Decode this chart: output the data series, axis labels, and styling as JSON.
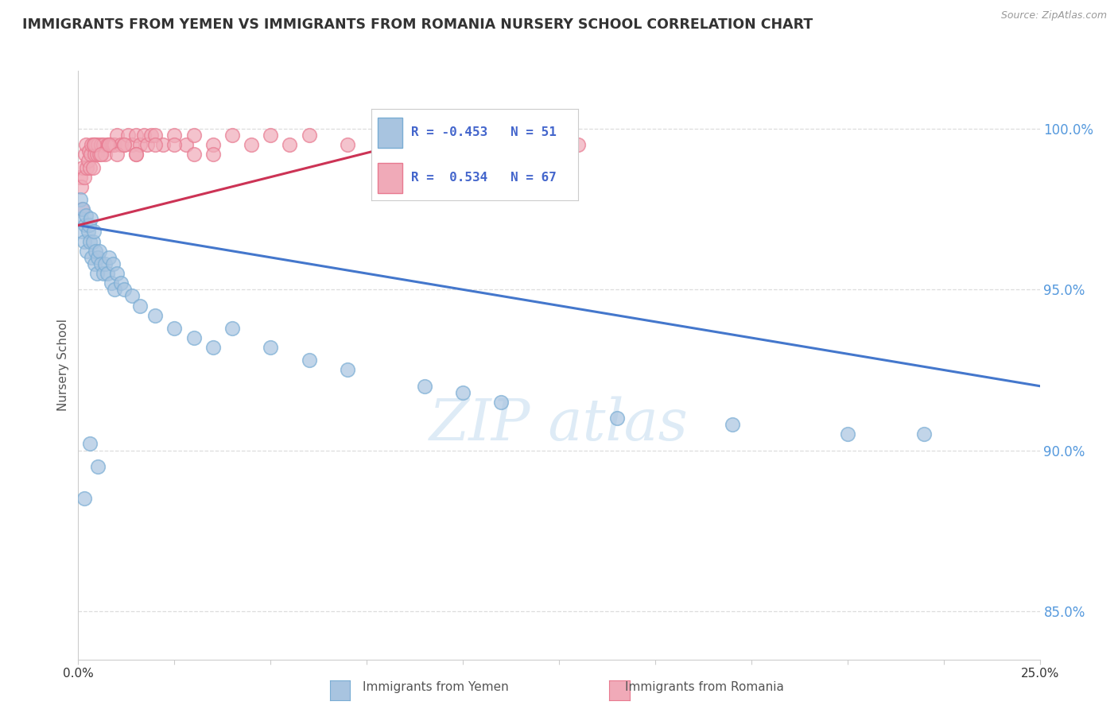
{
  "title": "IMMIGRANTS FROM YEMEN VS IMMIGRANTS FROM ROMANIA NURSERY SCHOOL CORRELATION CHART",
  "source": "Source: ZipAtlas.com",
  "ylabel": "Nursery School",
  "yticks": [
    85.0,
    90.0,
    95.0,
    100.0
  ],
  "xlim": [
    0.0,
    25.0
  ],
  "ylim": [
    83.5,
    101.8
  ],
  "legend_r_yemen": "-0.453",
  "legend_n_yemen": "51",
  "legend_r_romania": "0.534",
  "legend_n_romania": "67",
  "yemen_color": "#a8c4e0",
  "yemen_edge_color": "#7aadd4",
  "romania_color": "#f0aab8",
  "romania_edge_color": "#e87a90",
  "yemen_line_color": "#4477cc",
  "romania_line_color": "#cc3355",
  "background_color": "#ffffff",
  "grid_color": "#dddddd",
  "title_color": "#333333",
  "ytick_color": "#5599dd",
  "ylabel_color": "#555555",
  "legend_text_color": "#4466cc",
  "watermark_color": "#c8dff0",
  "yemen_x": [
    0.05,
    0.08,
    0.1,
    0.12,
    0.15,
    0.18,
    0.2,
    0.22,
    0.25,
    0.28,
    0.3,
    0.32,
    0.35,
    0.38,
    0.4,
    0.42,
    0.45,
    0.48,
    0.5,
    0.55,
    0.6,
    0.65,
    0.7,
    0.75,
    0.8,
    0.85,
    0.9,
    0.95,
    1.0,
    1.1,
    1.2,
    1.4,
    1.6,
    2.0,
    2.5,
    3.0,
    3.5,
    4.0,
    5.0,
    6.0,
    7.0,
    9.0,
    10.0,
    11.0,
    14.0,
    17.0,
    20.0,
    22.0,
    0.15,
    0.3,
    0.5
  ],
  "yemen_y": [
    97.8,
    97.2,
    96.8,
    97.5,
    96.5,
    97.0,
    97.3,
    96.2,
    96.8,
    97.0,
    96.5,
    97.2,
    96.0,
    96.5,
    96.8,
    95.8,
    96.2,
    95.5,
    96.0,
    96.2,
    95.8,
    95.5,
    95.8,
    95.5,
    96.0,
    95.2,
    95.8,
    95.0,
    95.5,
    95.2,
    95.0,
    94.8,
    94.5,
    94.2,
    93.8,
    93.5,
    93.2,
    93.8,
    93.2,
    92.8,
    92.5,
    92.0,
    91.8,
    91.5,
    91.0,
    90.8,
    90.5,
    90.5,
    88.5,
    90.2,
    89.5
  ],
  "romania_x": [
    0.05,
    0.08,
    0.1,
    0.12,
    0.15,
    0.18,
    0.2,
    0.22,
    0.25,
    0.28,
    0.3,
    0.32,
    0.35,
    0.38,
    0.4,
    0.42,
    0.45,
    0.48,
    0.5,
    0.55,
    0.6,
    0.65,
    0.7,
    0.75,
    0.8,
    0.85,
    0.9,
    0.95,
    1.0,
    1.1,
    1.2,
    1.3,
    1.4,
    1.5,
    1.6,
    1.7,
    1.8,
    1.9,
    2.0,
    2.2,
    2.5,
    2.8,
    3.0,
    3.5,
    4.0,
    4.5,
    5.0,
    5.5,
    6.0,
    7.0,
    8.0,
    9.0,
    10.0,
    11.0,
    12.0,
    13.0,
    1.5,
    2.5,
    3.5,
    0.4,
    0.6,
    0.8,
    1.0,
    1.2,
    1.5,
    2.0,
    3.0
  ],
  "romania_y": [
    98.5,
    98.2,
    97.5,
    98.8,
    98.5,
    99.2,
    99.5,
    98.8,
    99.0,
    99.3,
    98.8,
    99.2,
    99.5,
    98.8,
    99.5,
    99.2,
    99.5,
    99.2,
    99.5,
    99.2,
    99.5,
    99.5,
    99.2,
    99.5,
    99.5,
    99.5,
    99.5,
    99.5,
    99.8,
    99.5,
    99.5,
    99.8,
    99.5,
    99.8,
    99.5,
    99.8,
    99.5,
    99.8,
    99.8,
    99.5,
    99.8,
    99.5,
    99.8,
    99.5,
    99.8,
    99.5,
    99.8,
    99.5,
    99.8,
    99.5,
    99.8,
    99.5,
    99.8,
    99.5,
    99.8,
    99.5,
    99.2,
    99.5,
    99.2,
    99.5,
    99.2,
    99.5,
    99.2,
    99.5,
    99.2,
    99.5,
    99.2
  ],
  "yemen_trendline_x0": 0.0,
  "yemen_trendline_y0": 97.0,
  "yemen_trendline_x1": 25.0,
  "yemen_trendline_y1": 92.0,
  "romania_trendline_x0": 0.0,
  "romania_trendline_y0": 97.0,
  "romania_trendline_x1": 10.0,
  "romania_trendline_y1": 100.0
}
